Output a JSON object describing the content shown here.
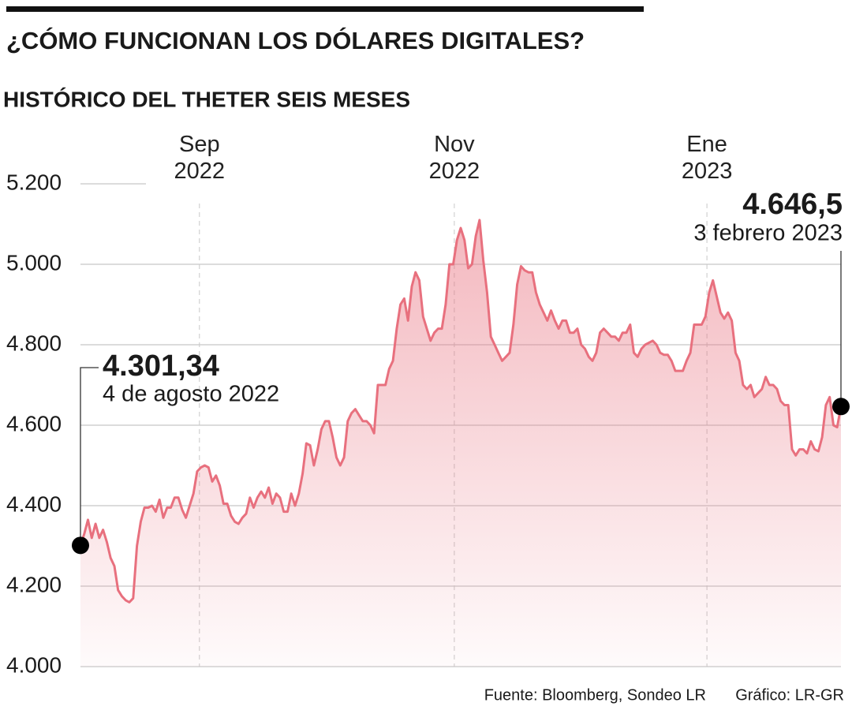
{
  "chart_data": {
    "type": "area",
    "title": "¿CÓMO FUNCIONAN LOS DÓLARES DIGITALES?",
    "subtitle": "HISTÓRICO DEL THETER SEIS MESES",
    "source": "Fuente: Bloomberg, Sondeo LR",
    "credit": "Gráfico: LR-GR",
    "color": "#e8707e",
    "grid": true,
    "values": [
      4301.34,
      4330,
      4365,
      4320,
      4355,
      4320,
      4340,
      4310,
      4270,
      4250,
      4190,
      4175,
      4165,
      4160,
      4170,
      4300,
      4360,
      4395,
      4395,
      4400,
      4385,
      4415,
      4370,
      4395,
      4395,
      4420,
      4420,
      4390,
      4370,
      4400,
      4430,
      4485,
      4495,
      4500,
      4495,
      4460,
      4475,
      4450,
      4405,
      4405,
      4375,
      4360,
      4355,
      4370,
      4380,
      4420,
      4395,
      4420,
      4435,
      4420,
      4445,
      4405,
      4430,
      4420,
      4385,
      4385,
      4430,
      4400,
      4430,
      4480,
      4555,
      4550,
      4500,
      4540,
      4590,
      4610,
      4610,
      4570,
      4520,
      4500,
      4520,
      4610,
      4630,
      4640,
      4625,
      4610,
      4610,
      4600,
      4580,
      4700,
      4700,
      4700,
      4740,
      4760,
      4840,
      4900,
      4915,
      4860,
      4945,
      4980,
      4960,
      4870,
      4840,
      4810,
      4830,
      4840,
      4840,
      4900,
      5000,
      5000,
      5060,
      5090,
      5060,
      4990,
      5000,
      5070,
      5110,
      5010,
      4930,
      4820,
      4800,
      4780,
      4760,
      4770,
      4780,
      4850,
      4950,
      4995,
      4985,
      4980,
      4980,
      4930,
      4900,
      4880,
      4860,
      4885,
      4860,
      4840,
      4860,
      4860,
      4830,
      4830,
      4840,
      4800,
      4790,
      4770,
      4760,
      4780,
      4830,
      4840,
      4830,
      4820,
      4820,
      4810,
      4830,
      4830,
      4850,
      4780,
      4770,
      4790,
      4800,
      4805,
      4810,
      4800,
      4780,
      4775,
      4775,
      4760,
      4735,
      4735,
      4735,
      4760,
      4780,
      4850,
      4850,
      4850,
      4870,
      4930,
      4960,
      4920,
      4880,
      4865,
      4880,
      4860,
      4780,
      4760,
      4700,
      4690,
      4700,
      4670,
      4680,
      4690,
      4720,
      4700,
      4700,
      4690,
      4660,
      4650,
      4650,
      4540,
      4525,
      4540,
      4540,
      4530,
      4560,
      4540,
      4535,
      4570,
      4650,
      4670,
      4600,
      4595,
      4646.5
    ],
    "annotations": [
      {
        "value_label": "4.301,34",
        "text": "4 de agosto 2022"
      },
      {
        "value_label": "4.646,5",
        "text": "3 febrero 2023"
      }
    ],
    "xlim": [
      0,
      202
    ],
    "xticks": [
      {
        "value": 31.6,
        "label": "Sep 2022"
      },
      {
        "value": 99.3,
        "label": "Nov 2022"
      },
      {
        "value": 166.4,
        "label": "Ene 2023"
      }
    ],
    "ylim": [
      4000,
      5200
    ],
    "yticks": [
      {
        "value": 4000,
        "label": "4.000"
      },
      {
        "value": 4200,
        "label": "4.200"
      },
      {
        "value": 4400,
        "label": "4.400"
      },
      {
        "value": 4600,
        "label": "4.600"
      },
      {
        "value": 4800,
        "label": "4.800"
      },
      {
        "value": 5000,
        "label": "5.000"
      },
      {
        "value": 5200,
        "label": "5.200"
      }
    ]
  }
}
